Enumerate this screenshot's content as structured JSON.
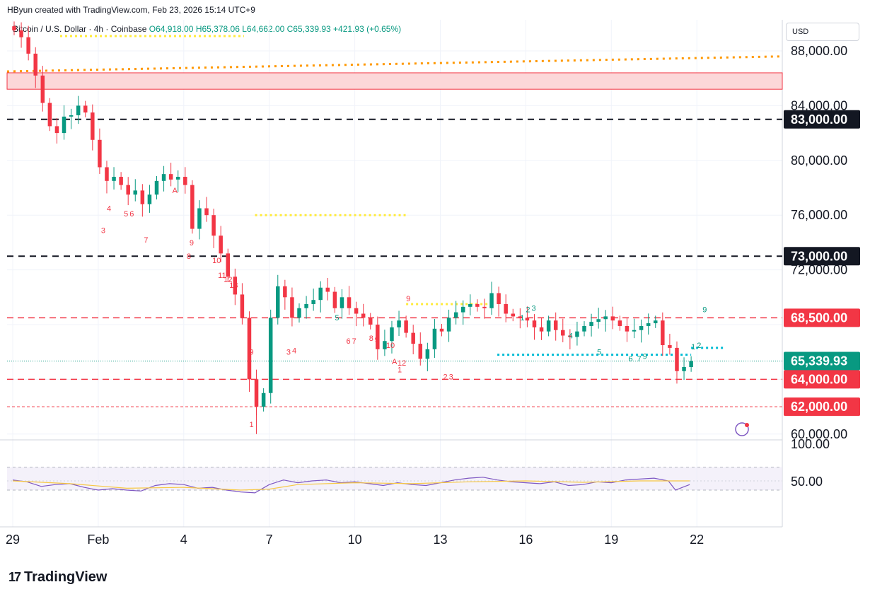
{
  "header": {
    "created": "HByun created with TradingView.com, Feb 23, 2026 15:14 UTC+9",
    "symbol": "Bitcoin / U.S. Dollar · 4h · Coinbase",
    "open": "O64,918.00",
    "high": "H65,378.06",
    "low": "L64,662.00",
    "close": "C65,339.93",
    "change": "+421.93 (+0.65%)"
  },
  "currency_button": "USD",
  "footer_brand": "TradingView",
  "colors": {
    "up": "#089981",
    "down": "#f23645",
    "rsi": "#7e57c2",
    "rsi_ma": "#f7c845",
    "orange_dots": "#ff9800",
    "yellow_dots": "#ffeb3b",
    "cyan_dots": "#00bcd4",
    "resistance_zone": "#fcd7d9"
  },
  "chart_data": {
    "type": "candlestick",
    "title": "Bitcoin / U.S. Dollar · 4h · Coinbase",
    "price_axis": {
      "ylim": [
        59000,
        89700
      ],
      "ticks": [
        "88,000.00",
        "84,000.00",
        "80,000.00",
        "76,000.00",
        "72,000.00",
        "60,000.00"
      ]
    },
    "highlighted_levels": [
      {
        "label": "83,000.00",
        "value": 83000,
        "style": "black-dashed"
      },
      {
        "label": "73,000.00",
        "value": 73000,
        "style": "black-dashed"
      },
      {
        "label": "68,500.00",
        "value": 68500,
        "style": "red-dashed"
      },
      {
        "label": "65,339.93",
        "value": 65339.93,
        "style": "current-price"
      },
      {
        "label": "64,000.00",
        "value": 64000,
        "style": "red-dashed"
      },
      {
        "label": "62,000.00",
        "value": 62000,
        "style": "red-dotted"
      }
    ],
    "resistance_zone": [
      85200,
      86400
    ],
    "x_ticks": [
      {
        "label": "29",
        "day": 0
      },
      {
        "label": "Feb",
        "day": 3
      },
      {
        "label": "4",
        "day": 6
      },
      {
        "label": "7",
        "day": 9
      },
      {
        "label": "10",
        "day": 12
      },
      {
        "label": "13",
        "day": 15
      },
      {
        "label": "16",
        "day": 18
      },
      {
        "label": "19",
        "day": 21
      },
      {
        "label": "22",
        "day": 24
      }
    ],
    "close_path": [
      [
        0,
        89500
      ],
      [
        0.25,
        89000
      ],
      [
        0.5,
        87800
      ],
      [
        0.75,
        86200
      ],
      [
        1.0,
        84200
      ],
      [
        1.25,
        82500
      ],
      [
        1.5,
        82000
      ],
      [
        1.75,
        83200
      ],
      [
        2.0,
        83300
      ],
      [
        2.25,
        84000
      ],
      [
        2.5,
        83500
      ],
      [
        2.75,
        81500
      ],
      [
        3.0,
        79500
      ],
      [
        3.25,
        78500
      ],
      [
        3.5,
        78800
      ],
      [
        3.75,
        78200
      ],
      [
        4.0,
        77500
      ],
      [
        4.25,
        77800
      ],
      [
        4.5,
        76800
      ],
      [
        4.75,
        77500
      ],
      [
        5.0,
        78500
      ],
      [
        5.25,
        79000
      ],
      [
        5.5,
        78600
      ],
      [
        5.75,
        78800
      ],
      [
        6.0,
        78200
      ],
      [
        6.25,
        75000
      ],
      [
        6.5,
        76500
      ],
      [
        6.75,
        76000
      ],
      [
        7.0,
        74500
      ],
      [
        7.25,
        73200
      ],
      [
        7.5,
        71500
      ],
      [
        7.75,
        70200
      ],
      [
        8.0,
        68500
      ],
      [
        8.25,
        64000
      ],
      [
        8.5,
        62000
      ],
      [
        8.75,
        63000
      ],
      [
        9.0,
        68500
      ],
      [
        9.25,
        70800
      ],
      [
        9.5,
        70000
      ],
      [
        9.75,
        68500
      ],
      [
        10.0,
        69200
      ],
      [
        10.25,
        69500
      ],
      [
        10.5,
        69800
      ],
      [
        10.75,
        70700
      ],
      [
        11.0,
        70400
      ],
      [
        11.25,
        69200
      ],
      [
        11.5,
        70000
      ],
      [
        11.75,
        69200
      ],
      [
        12.0,
        68800
      ],
      [
        12.25,
        68500
      ],
      [
        12.5,
        68000
      ],
      [
        12.75,
        66200
      ],
      [
        13.0,
        66800
      ],
      [
        13.25,
        67800
      ],
      [
        13.5,
        68300
      ],
      [
        13.75,
        67400
      ],
      [
        14.0,
        66600
      ],
      [
        14.25,
        65500
      ],
      [
        14.5,
        66200
      ],
      [
        14.75,
        67700
      ],
      [
        15.0,
        67500
      ],
      [
        15.25,
        68500
      ],
      [
        15.5,
        68900
      ],
      [
        15.75,
        69300
      ],
      [
        16.0,
        69500
      ],
      [
        16.25,
        69300
      ],
      [
        16.5,
        69200
      ],
      [
        16.75,
        70300
      ],
      [
        17.0,
        69500
      ],
      [
        17.25,
        68800
      ],
      [
        17.5,
        68600
      ],
      [
        17.75,
        68500
      ],
      [
        18.0,
        68300
      ],
      [
        18.25,
        67800
      ],
      [
        18.5,
        67500
      ],
      [
        18.75,
        68300
      ],
      [
        19.0,
        67600
      ],
      [
        19.25,
        67200
      ],
      [
        19.5,
        67100
      ],
      [
        19.75,
        67500
      ],
      [
        20.0,
        67900
      ],
      [
        20.25,
        68200
      ],
      [
        20.5,
        68400
      ],
      [
        20.75,
        68600
      ],
      [
        21.0,
        68300
      ],
      [
        21.25,
        67900
      ],
      [
        21.5,
        67500
      ],
      [
        21.75,
        67600
      ],
      [
        22.0,
        67900
      ],
      [
        22.25,
        68100
      ],
      [
        22.5,
        68300
      ],
      [
        22.75,
        66500
      ],
      [
        23.0,
        66300
      ],
      [
        23.25,
        64600
      ],
      [
        23.5,
        64900
      ],
      [
        23.75,
        65339.93
      ]
    ],
    "rsi": {
      "ticks": [
        "100.00",
        "50.00"
      ],
      "ylim": [
        0,
        100
      ],
      "overbought": 70,
      "oversold": 30,
      "values": [
        [
          0,
          52
        ],
        [
          0.5,
          48
        ],
        [
          1.0,
          38
        ],
        [
          1.5,
          42
        ],
        [
          2.0,
          44
        ],
        [
          2.5,
          36
        ],
        [
          3.0,
          30
        ],
        [
          3.5,
          33
        ],
        [
          4.0,
          30
        ],
        [
          4.5,
          28
        ],
        [
          5.0,
          40
        ],
        [
          5.5,
          44
        ],
        [
          6.0,
          42
        ],
        [
          6.5,
          34
        ],
        [
          7.0,
          36
        ],
        [
          7.5,
          30
        ],
        [
          8.0,
          26
        ],
        [
          8.5,
          24
        ],
        [
          9.0,
          42
        ],
        [
          9.5,
          52
        ],
        [
          10.0,
          46
        ],
        [
          10.5,
          50
        ],
        [
          11.0,
          52
        ],
        [
          11.5,
          46
        ],
        [
          12.0,
          48
        ],
        [
          12.5,
          44
        ],
        [
          13.0,
          40
        ],
        [
          13.5,
          46
        ],
        [
          14.0,
          42
        ],
        [
          14.5,
          40
        ],
        [
          15.0,
          46
        ],
        [
          15.5,
          52
        ],
        [
          16.0,
          56
        ],
        [
          16.5,
          58
        ],
        [
          17.0,
          52
        ],
        [
          17.5,
          48
        ],
        [
          18.0,
          46
        ],
        [
          18.5,
          44
        ],
        [
          19.0,
          48
        ],
        [
          19.5,
          40
        ],
        [
          20.0,
          42
        ],
        [
          20.5,
          48
        ],
        [
          21.0,
          46
        ],
        [
          21.5,
          52
        ],
        [
          22.0,
          54
        ],
        [
          22.5,
          56
        ],
        [
          23.0,
          50
        ],
        [
          23.25,
          30
        ],
        [
          23.5,
          36
        ],
        [
          23.75,
          42
        ]
      ],
      "ma_values": [
        [
          0,
          50
        ],
        [
          2,
          44
        ],
        [
          4,
          34
        ],
        [
          6,
          36
        ],
        [
          8,
          30
        ],
        [
          9,
          32
        ],
        [
          10,
          42
        ],
        [
          12,
          46
        ],
        [
          14,
          44
        ],
        [
          16,
          48
        ],
        [
          18,
          50
        ],
        [
          20,
          47
        ],
        [
          22,
          50
        ],
        [
          23.75,
          50
        ]
      ]
    },
    "series_markers": [
      {
        "day": 3.3,
        "price": 76300,
        "text": "4",
        "side": "down"
      },
      {
        "day": 3.9,
        "price": 75900,
        "text": "5",
        "side": "down"
      },
      {
        "day": 4.1,
        "price": 75900,
        "text": "6",
        "side": "down"
      },
      {
        "day": 4.6,
        "price": 74000,
        "text": "7",
        "side": "down"
      },
      {
        "day": 3.1,
        "price": 74700,
        "text": "3",
        "side": "down"
      },
      {
        "day": 6.1,
        "price": 72800,
        "text": "8",
        "side": "down"
      },
      {
        "day": 6.2,
        "price": 73800,
        "text": "9",
        "side": "down"
      },
      {
        "day": 7.0,
        "price": 72500,
        "text": "10",
        "side": "down"
      },
      {
        "day": 7.2,
        "price": 71400,
        "text": "11",
        "side": "down"
      },
      {
        "day": 7.4,
        "price": 71100,
        "text": "12",
        "side": "down"
      },
      {
        "day": 7.6,
        "price": 70700,
        "text": "13",
        "side": "down"
      },
      {
        "day": 8.3,
        "price": 60500,
        "text": "1",
        "side": "down"
      },
      {
        "day": 8.3,
        "price": 65800,
        "text": "9",
        "side": "down"
      },
      {
        "day": 9.6,
        "price": 65800,
        "text": "3",
        "side": "down"
      },
      {
        "day": 9.8,
        "price": 65900,
        "text": "4",
        "side": "down"
      },
      {
        "day": 11.7,
        "price": 66600,
        "text": "6",
        "side": "down"
      },
      {
        "day": 11.9,
        "price": 66600,
        "text": "7",
        "side": "down"
      },
      {
        "day": 12.5,
        "price": 66800,
        "text": "8",
        "side": "down"
      },
      {
        "day": 12.7,
        "price": 66700,
        "text": "9",
        "side": "down"
      },
      {
        "day": 13.1,
        "price": 66300,
        "text": "10",
        "side": "down"
      },
      {
        "day": 13.5,
        "price": 64500,
        "text": "1",
        "side": "down"
      },
      {
        "day": 15.1,
        "price": 64000,
        "text": "2",
        "side": "down"
      },
      {
        "day": 15.3,
        "price": 64000,
        "text": "3",
        "side": "down"
      },
      {
        "day": 5.6,
        "price": 77600,
        "text": "A",
        "side": "down"
      },
      {
        "day": 13.3,
        "price": 65100,
        "text": "A",
        "side": "down"
      },
      {
        "day": 13.5,
        "price": 65000,
        "text": "12",
        "side": "down"
      },
      {
        "day": 11.3,
        "price": 68300,
        "text": "5",
        "side": "up"
      },
      {
        "day": 13.8,
        "price": 69700,
        "text": "9",
        "side": "down"
      },
      {
        "day": 17.8,
        "price": 68300,
        "text": "1",
        "side": "up"
      },
      {
        "day": 18.0,
        "price": 68900,
        "text": "2",
        "side": "up"
      },
      {
        "day": 18.2,
        "price": 69000,
        "text": "3",
        "side": "up"
      },
      {
        "day": 19.5,
        "price": 67000,
        "text": "4",
        "side": "up"
      },
      {
        "day": 20.5,
        "price": 65800,
        "text": "5",
        "side": "up"
      },
      {
        "day": 21.6,
        "price": 65300,
        "text": "6",
        "side": "up"
      },
      {
        "day": 21.9,
        "price": 65300,
        "text": "7",
        "side": "up"
      },
      {
        "day": 22.1,
        "price": 65500,
        "text": "9",
        "side": "up"
      },
      {
        "day": 24.2,
        "price": 68900,
        "text": "9",
        "side": "up"
      },
      {
        "day": 23.8,
        "price": 66200,
        "text": "1",
        "side": "up"
      },
      {
        "day": 24.0,
        "price": 66300,
        "text": "2",
        "side": "up"
      }
    ],
    "zones": {
      "orange_dotted_trend": [
        [
          0,
          86500
        ],
        [
          26,
          87600
        ]
      ],
      "yellow_dotted_1": {
        "from": 8.5,
        "to": 13.8,
        "price": 76000
      },
      "yellow_dotted_2": {
        "from": 13.8,
        "to": 16.8,
        "price": 69500
      },
      "yellow_dotted_top": {
        "from": 2.0,
        "to": 8.2,
        "price": 89300
      },
      "cyan_dotted_1": {
        "from": 17.0,
        "to": 23.8,
        "price": 65800
      },
      "cyan_dotted_2": {
        "from": 23.8,
        "to": 25.0,
        "price": 66300
      }
    }
  }
}
